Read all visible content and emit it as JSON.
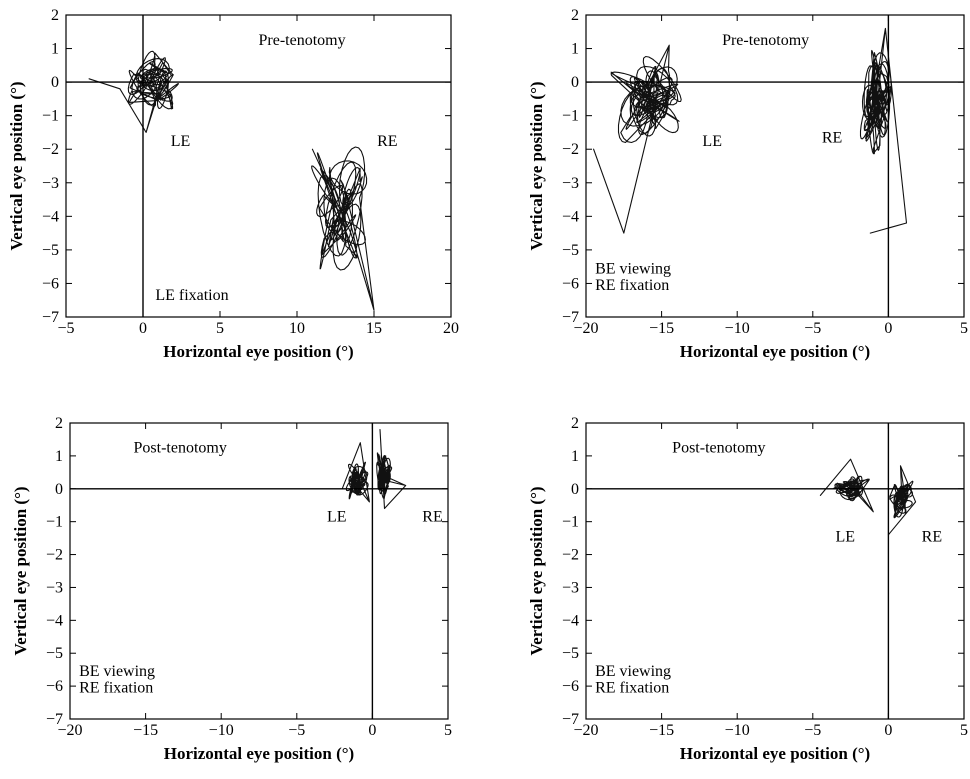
{
  "chart_data": [
    {
      "type": "line",
      "panel": "top-left",
      "xlabel": "Horizontal eye position (°)",
      "ylabel": "Vertical eye position (°)",
      "xlim": [
        -5,
        20
      ],
      "ylim": [
        -7,
        2
      ],
      "xticks": [
        -5,
        0,
        5,
        10,
        15,
        20
      ],
      "yticks": [
        2,
        1,
        0,
        -1,
        -2,
        -3,
        -4,
        -5,
        -6,
        -7
      ],
      "tick_labels_x": [
        "−5",
        "0",
        "5",
        "10",
        "15",
        "20"
      ],
      "tick_labels_y": [
        "2",
        "1",
        "0",
        "−1",
        "−2",
        "−3",
        "−4",
        "−5",
        "−6",
        "−7"
      ],
      "annotations": [
        {
          "text": "Pre-tenotomy",
          "x": 7.5,
          "y": 1.1
        },
        {
          "text": "LE",
          "x": 1.8,
          "y": -1.9
        },
        {
          "text": "RE",
          "x": 15.2,
          "y": -1.9
        },
        {
          "text": "LE fixation",
          "x": 0.8,
          "y": -6.5
        }
      ],
      "series": [
        {
          "name": "LE",
          "cx": 0.7,
          "cy": 0.0,
          "sx": 1.4,
          "sy": 0.7,
          "loops": 18,
          "seed": 11,
          "path_offset": [
            [
              -3.5,
              0.1
            ],
            [
              -1.5,
              -0.2
            ],
            [
              0.2,
              -1.5
            ]
          ]
        },
        {
          "name": "RE",
          "cx": 12.8,
          "cy": -3.6,
          "sx": 1.6,
          "sy": 1.7,
          "loops": 18,
          "seed": 23,
          "path_offset": [
            [
              11.0,
              -2.0
            ],
            [
              13.5,
              -4.5
            ],
            [
              15.0,
              -6.8
            ]
          ]
        }
      ]
    },
    {
      "type": "line",
      "panel": "top-right",
      "xlabel": "Horizontal eye position (°)",
      "ylabel": "Vertical eye position (°)",
      "xlim": [
        -20,
        5
      ],
      "ylim": [
        -7,
        2
      ],
      "xticks": [
        -20,
        -15,
        -10,
        -5,
        0,
        5
      ],
      "yticks": [
        2,
        1,
        0,
        -1,
        -2,
        -3,
        -4,
        -5,
        -6,
        -7
      ],
      "tick_labels_x": [
        "−20",
        "−15",
        "−10",
        "−5",
        "0",
        "5"
      ],
      "tick_labels_y": [
        "2",
        "1",
        "0",
        "−1",
        "−2",
        "−3",
        "−4",
        "−5",
        "−6",
        "−7"
      ],
      "annotations": [
        {
          "text": "Pre-tenotomy",
          "x": -11.0,
          "y": 1.1
        },
        {
          "text": "LE",
          "x": -12.3,
          "y": -1.9
        },
        {
          "text": "RE",
          "x": -4.4,
          "y": -1.8
        },
        {
          "text": "BE viewing",
          "x": -19.4,
          "y": -5.7
        },
        {
          "text": "RE fixation",
          "x": -19.4,
          "y": -6.2
        }
      ],
      "series": [
        {
          "name": "LE",
          "cx": -15.9,
          "cy": -0.5,
          "sx": 1.9,
          "sy": 1.0,
          "loops": 26,
          "seed": 37,
          "path_offset": [
            [
              -19.5,
              -2.0
            ],
            [
              -17.5,
              -4.5
            ],
            [
              -14.5,
              1.1
            ]
          ]
        },
        {
          "name": "RE",
          "cx": -0.8,
          "cy": -0.5,
          "sx": 0.8,
          "sy": 1.2,
          "loops": 26,
          "seed": 51,
          "path_offset": [
            [
              -1.2,
              -4.5
            ],
            [
              1.2,
              -4.2
            ],
            [
              -0.2,
              1.6
            ]
          ]
        }
      ]
    },
    {
      "type": "line",
      "panel": "bottom-left",
      "xlabel": "Horizontal eye position (°)",
      "ylabel": "Vertical eye position (°)",
      "xlim": [
        -20,
        5
      ],
      "ylim": [
        -7,
        2
      ],
      "xticks": [
        -20,
        -15,
        -10,
        -5,
        0,
        5
      ],
      "yticks": [
        2,
        1,
        0,
        -1,
        -2,
        -3,
        -4,
        -5,
        -6,
        -7
      ],
      "tick_labels_x": [
        "−20",
        "−15",
        "−10",
        "−5",
        "0",
        "5"
      ],
      "tick_labels_y": [
        "2",
        "1",
        "0",
        "−1",
        "−2",
        "−3",
        "−4",
        "−5",
        "−6",
        "−7"
      ],
      "annotations": [
        {
          "text": "Post-tenotomy",
          "x": -15.8,
          "y": 1.1
        },
        {
          "text": "LE",
          "x": -3.0,
          "y": -1.0
        },
        {
          "text": "RE",
          "x": 3.3,
          "y": -1.0
        },
        {
          "text": "BE viewing",
          "x": -19.4,
          "y": -5.7
        },
        {
          "text": "RE fixation",
          "x": -19.4,
          "y": -6.2
        }
      ],
      "series": [
        {
          "name": "LE",
          "cx": -1.0,
          "cy": 0.3,
          "sx": 0.65,
          "sy": 0.5,
          "loops": 20,
          "seed": 63,
          "path_offset": [
            [
              -2.0,
              0.0
            ],
            [
              -0.8,
              1.4
            ],
            [
              -0.2,
              -0.4
            ]
          ]
        },
        {
          "name": "RE",
          "cx": 0.7,
          "cy": 0.4,
          "sx": 0.45,
          "sy": 0.6,
          "loops": 20,
          "seed": 79,
          "path_offset": [
            [
              0.5,
              1.8
            ],
            [
              0.8,
              -0.6
            ],
            [
              2.2,
              0.1
            ]
          ]
        }
      ]
    },
    {
      "type": "line",
      "panel": "bottom-right",
      "xlabel": "Horizontal eye position (°)",
      "ylabel": "Vertical eye position (°)",
      "xlim": [
        -20,
        5
      ],
      "ylim": [
        -7,
        2
      ],
      "xticks": [
        -20,
        -15,
        -10,
        -5,
        0,
        5
      ],
      "yticks": [
        2,
        1,
        0,
        -1,
        -2,
        -3,
        -4,
        -5,
        -6,
        -7
      ],
      "tick_labels_x": [
        "−20",
        "−15",
        "−10",
        "−5",
        "0",
        "5"
      ],
      "tick_labels_y": [
        "2",
        "1",
        "0",
        "−1",
        "−2",
        "−3",
        "−4",
        "−5",
        "−6",
        "−7"
      ],
      "annotations": [
        {
          "text": "Post-tenotomy",
          "x": -14.3,
          "y": 1.1
        },
        {
          "text": "LE",
          "x": -3.5,
          "y": -1.6
        },
        {
          "text": "RE",
          "x": 2.2,
          "y": -1.6
        },
        {
          "text": "BE viewing",
          "x": -19.4,
          "y": -5.7
        },
        {
          "text": "RE fixation",
          "x": -19.4,
          "y": -6.2
        }
      ],
      "series": [
        {
          "name": "LE",
          "cx": -2.4,
          "cy": 0.0,
          "sx": 1.0,
          "sy": 0.35,
          "loops": 18,
          "seed": 91,
          "path_offset": [
            [
              -4.5,
              -0.2
            ],
            [
              -2.5,
              0.9
            ],
            [
              -1.0,
              -0.7
            ]
          ]
        },
        {
          "name": "RE",
          "cx": 0.9,
          "cy": -0.3,
          "sx": 0.6,
          "sy": 0.5,
          "loops": 18,
          "seed": 103,
          "path_offset": [
            [
              0.0,
              -1.4
            ],
            [
              1.8,
              -0.4
            ],
            [
              0.8,
              0.7
            ]
          ]
        }
      ]
    }
  ]
}
